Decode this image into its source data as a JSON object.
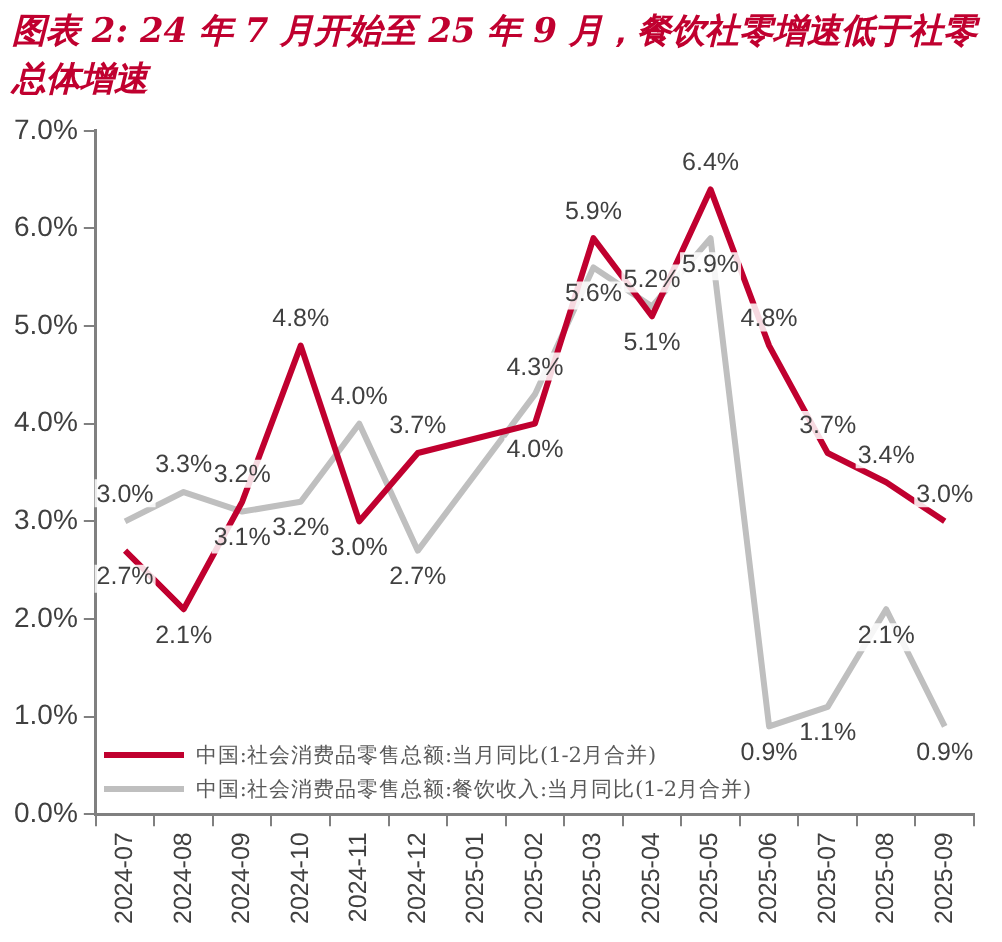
{
  "chart_data": {
    "type": "line",
    "title": "图表 2: 24 年 7 月开始至 25 年 9 月，餐饮社零增速低于社零总体增速",
    "categories": [
      "2024-07",
      "2024-08",
      "2024-09",
      "2024-10",
      "2024-11",
      "2024-12",
      "2025-01",
      "2025-02",
      "2025-03",
      "2025-04",
      "2025-05",
      "2025-06",
      "2025-07",
      "2025-08",
      "2025-09"
    ],
    "series": [
      {
        "name": "中国:社会消费品零售总额:当月同比(1-2月合并)",
        "color": "#c0002f",
        "values": [
          2.7,
          2.1,
          3.2,
          4.8,
          3.0,
          3.7,
          null,
          4.0,
          5.9,
          5.1,
          6.4,
          4.8,
          3.7,
          3.4,
          3.0
        ],
        "value_labels": [
          "2.7%",
          "2.1%",
          "3.2%",
          "4.8%",
          "3.0%",
          "3.7%",
          null,
          "4.0%",
          "5.9%",
          "5.1%",
          "6.4%",
          "4.8%",
          "3.7%",
          "3.4%",
          "3.0%"
        ]
      },
      {
        "name": "中国:社会消费品零售总额:餐饮收入:当月同比(1-2月合并)",
        "color": "#bfbfbf",
        "values": [
          3.0,
          3.3,
          3.1,
          3.2,
          4.0,
          2.7,
          null,
          4.3,
          5.6,
          5.2,
          5.9,
          0.9,
          1.1,
          2.1,
          0.9
        ],
        "value_labels": [
          "3.0%",
          "3.3%",
          "3.1%",
          "3.2%",
          "4.0%",
          "2.7%",
          null,
          "4.3%",
          "5.6%",
          "5.2%",
          "5.9%",
          "0.9%",
          "1.1%",
          "2.1%",
          "0.9%"
        ]
      }
    ],
    "ylim": [
      0,
      7
    ],
    "yticks": [
      {
        "value": 0,
        "label": "0.0%"
      },
      {
        "value": 1,
        "label": "1.0%"
      },
      {
        "value": 2,
        "label": "2.0%"
      },
      {
        "value": 3,
        "label": "3.0%"
      },
      {
        "value": 4,
        "label": "4.0%"
      },
      {
        "value": 5,
        "label": "5.0%"
      },
      {
        "value": 6,
        "label": "6.0%"
      },
      {
        "value": 7,
        "label": "7.0%"
      }
    ],
    "grid": false,
    "legend": "bottom left",
    "marker": "none",
    "line_style": "solid"
  }
}
